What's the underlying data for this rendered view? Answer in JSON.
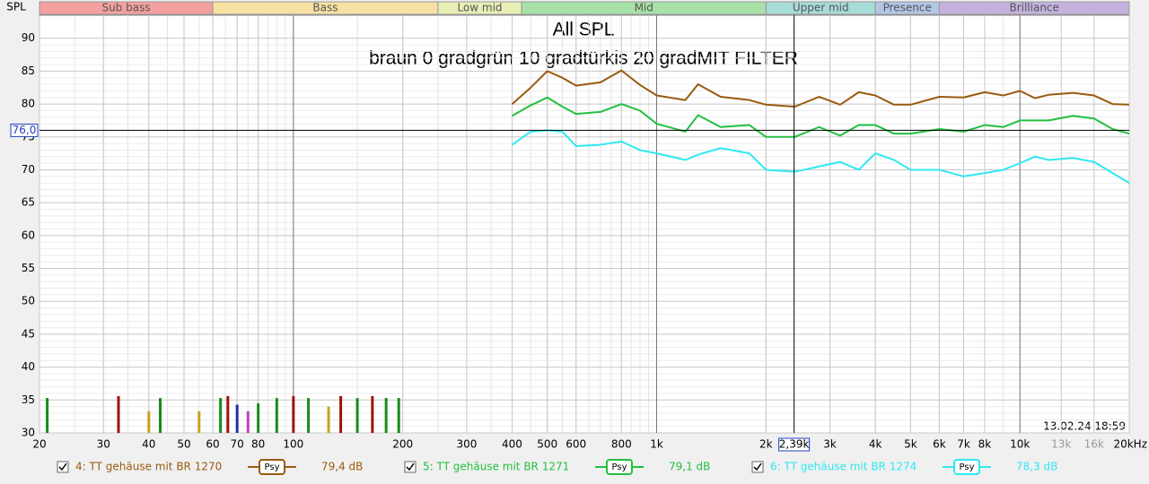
{
  "chart_data": {
    "type": "line",
    "title": "All SPL",
    "subtitle": "braun 0  gradgrün 10 gradtürkis 20 gradMIT FILTER",
    "y_label": "SPL",
    "timestamp": "13.02.24 18:59",
    "log_x": true,
    "grid": true,
    "xlim": [
      20,
      20000
    ],
    "ylim": [
      30,
      93.5
    ],
    "yticks": [
      30,
      35,
      40,
      45,
      50,
      55,
      60,
      65,
      70,
      75,
      80,
      85,
      90
    ],
    "xticks": [
      20,
      30,
      40,
      50,
      60,
      70,
      80,
      100,
      200,
      300,
      400,
      500,
      600,
      800,
      {
        "value": 1000,
        "label": "1k"
      },
      {
        "value": 2000,
        "label": "2k"
      },
      {
        "value": 3000,
        "label": "3k"
      },
      {
        "value": 4000,
        "label": "4k"
      },
      {
        "value": 5000,
        "label": "5k"
      },
      {
        "value": 6000,
        "label": "6k"
      },
      {
        "value": 7000,
        "label": "7k"
      },
      {
        "value": 8000,
        "label": "8k"
      },
      {
        "value": 10000,
        "label": "10k"
      },
      {
        "value": 13000,
        "label": "13k"
      },
      {
        "value": 16000,
        "label": "16k"
      },
      {
        "value": 20000,
        "label": "20kHz"
      }
    ],
    "bands": [
      {
        "name": "Sub bass",
        "from": 20,
        "to": 60,
        "color": "#f4a0a0"
      },
      {
        "name": "Bass",
        "from": 60,
        "to": 250,
        "color": "#f6e0a4"
      },
      {
        "name": "Low mid",
        "from": 250,
        "to": 425,
        "color": "#e8eeb4"
      },
      {
        "name": "Mid",
        "from": 425,
        "to": 2000,
        "color": "#a8e2a8"
      },
      {
        "name": "Upper mid",
        "from": 2000,
        "to": 4000,
        "color": "#a8dcd8"
      },
      {
        "name": "Presence",
        "from": 4000,
        "to": 6000,
        "color": "#b2c6e6"
      },
      {
        "name": "Brilliance",
        "from": 6000,
        "to": 20000,
        "color": "#c4b2de"
      }
    ],
    "cursor_y": {
      "value": 76,
      "label": "76,0"
    },
    "cursor_x": {
      "value": 2390,
      "label": "2,39k"
    },
    "x": [
      400,
      450,
      500,
      550,
      600,
      700,
      800,
      900,
      1000,
      1200,
      1300,
      1500,
      1800,
      2000,
      2400,
      2800,
      3200,
      3600,
      4000,
      4500,
      5000,
      6000,
      7000,
      8000,
      9000,
      10000,
      11000,
      12000,
      14000,
      16000,
      18000,
      20000
    ],
    "series": [
      {
        "name": "4: TT gehäuse mit BR 1270",
        "color": "#9a5a10",
        "smoothing": "Psy",
        "level": "79,4 dB",
        "values": [
          80.0,
          82.5,
          85.0,
          84.0,
          82.8,
          83.3,
          85.1,
          82.9,
          81.3,
          80.6,
          83.0,
          81.1,
          80.6,
          79.9,
          79.6,
          81.1,
          79.9,
          81.8,
          81.3,
          79.9,
          79.9,
          81.1,
          81.0,
          81.8,
          81.3,
          82.0,
          80.9,
          81.4,
          81.7,
          81.3,
          80.0,
          79.9
        ]
      },
      {
        "name": "5: TT gehäuse mit BR 1271",
        "color": "#22c040",
        "smoothing": "Psy",
        "level": "79,1 dB",
        "values": [
          78.2,
          79.8,
          81.0,
          79.6,
          78.5,
          78.8,
          80.0,
          79.0,
          77.0,
          75.8,
          78.3,
          76.5,
          76.8,
          75.0,
          75.0,
          76.5,
          75.2,
          76.8,
          76.8,
          75.5,
          75.5,
          76.2,
          75.8,
          76.8,
          76.5,
          77.5,
          77.5,
          77.5,
          78.2,
          77.8,
          76.2,
          75.5
        ]
      },
      {
        "name": "6: TT gehäuse mit BR 1274",
        "color": "#30e8f0",
        "smoothing": "Psy",
        "level": "78,3 dB",
        "values": [
          73.8,
          75.8,
          76.0,
          75.8,
          73.6,
          73.8,
          74.3,
          73.0,
          72.5,
          71.5,
          72.3,
          73.3,
          72.5,
          70.0,
          69.7,
          70.5,
          71.2,
          70.0,
          72.5,
          71.5,
          70.0,
          70.0,
          69.0,
          69.5,
          70.0,
          71.0,
          72.0,
          71.5,
          71.8,
          71.2,
          69.5,
          68.0
        ]
      }
    ],
    "bars": [
      {
        "x": 21,
        "value": 35.3,
        "color": "#1a8a1a"
      },
      {
        "x": 33,
        "value": 35.6,
        "color": "#a01010"
      },
      {
        "x": 40,
        "value": 33.3,
        "color": "#c8a020"
      },
      {
        "x": 43,
        "value": 35.3,
        "color": "#1a8a1a"
      },
      {
        "x": 55,
        "value": 33.3,
        "color": "#c8a020"
      },
      {
        "x": 63,
        "value": 35.3,
        "color": "#1a8a1a"
      },
      {
        "x": 66,
        "value": 35.6,
        "color": "#a01010"
      },
      {
        "x": 70,
        "value": 34.3,
        "color": "#2030a0"
      },
      {
        "x": 75,
        "value": 33.3,
        "color": "#c040c0"
      },
      {
        "x": 80,
        "value": 34.5,
        "color": "#1a8a1a"
      },
      {
        "x": 90,
        "value": 35.3,
        "color": "#1a8a1a"
      },
      {
        "x": 100,
        "value": 35.6,
        "color": "#a01010"
      },
      {
        "x": 110,
        "value": 35.3,
        "color": "#1a8a1a"
      },
      {
        "x": 125,
        "value": 34.0,
        "color": "#c8a020"
      },
      {
        "x": 135,
        "value": 35.6,
        "color": "#a01010"
      },
      {
        "x": 150,
        "value": 35.3,
        "color": "#1a8a1a"
      },
      {
        "x": 165,
        "value": 35.6,
        "color": "#a01010"
      },
      {
        "x": 180,
        "value": 35.3,
        "color": "#1a8a1a"
      },
      {
        "x": 195,
        "value": 35.3,
        "color": "#1a8a1a"
      }
    ]
  }
}
